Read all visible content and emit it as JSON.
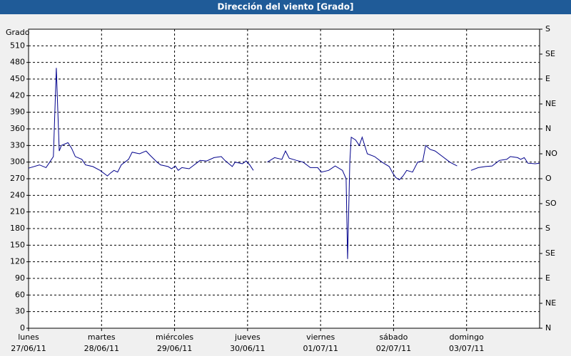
{
  "chart_data": {
    "type": "line",
    "title": "Dirección del viento [Grado]",
    "ylabel": "Grado",
    "x": [
      0,
      0.15,
      0.24,
      0.29,
      0.34,
      0.38,
      0.42,
      0.45,
      0.54,
      0.59,
      0.64,
      0.73,
      0.78,
      0.88,
      0.98,
      1.08,
      1.12,
      1.17,
      1.22,
      1.27,
      1.37,
      1.42,
      1.52,
      1.61,
      1.66,
      1.76,
      1.81,
      1.91,
      1.96,
      2.01,
      2.05,
      2.1,
      2.2,
      2.25,
      2.35,
      2.44,
      2.54,
      2.64,
      2.69,
      2.79,
      2.83,
      2.93,
      2.98,
      3.03,
      3.08,
      3.18,
      3.27,
      3.37,
      3.47,
      3.52,
      3.57,
      3.67,
      3.76,
      3.86,
      3.96,
      4.01,
      4.11,
      4.2,
      4.3,
      4.35,
      4.37,
      4.4,
      4.42,
      4.48,
      4.53,
      4.57,
      4.64,
      4.74,
      4.84,
      4.94,
      4.99,
      5.03,
      5.08,
      5.13,
      5.18,
      5.26,
      5.33,
      5.4,
      5.44,
      5.5,
      5.57,
      5.67,
      5.77,
      5.87,
      5.97,
      6.06,
      6.16,
      6.26,
      6.35,
      6.45,
      6.55,
      6.6,
      6.7,
      6.74,
      6.79,
      6.84,
      6.94,
      7.0
    ],
    "series": [
      {
        "color": "#00008b",
        "values": [
          289,
          295,
          290,
          300,
          310,
          470,
          320,
          330,
          335,
          325,
          310,
          305,
          295,
          292,
          285,
          275,
          280,
          285,
          282,
          295,
          305,
          318,
          315,
          320,
          313,
          300,
          295,
          292,
          288,
          293,
          285,
          290,
          288,
          293,
          303,
          302,
          308,
          310,
          303,
          292,
          300,
          297,
          302,
          295,
          285,
          null,
          300,
          308,
          305,
          320,
          307,
          303,
          300,
          290,
          290,
          282,
          285,
          293,
          285,
          270,
          125,
          300,
          345,
          340,
          330,
          345,
          315,
          310,
          300,
          292,
          280,
          272,
          268,
          275,
          285,
          282,
          300,
          302,
          330,
          323,
          320,
          310,
          300,
          293,
          null,
          285,
          290,
          292,
          293,
          303,
          305,
          310,
          308,
          305,
          308,
          298,
          297,
          298
        ]
      }
    ],
    "xlim": [
      0,
      7
    ],
    "xticks": [
      {
        "value": 0,
        "label": "lunes",
        "date": "27/06/11"
      },
      {
        "value": 1,
        "label": "martes",
        "date": "28/06/11"
      },
      {
        "value": 2,
        "label": "miércoles",
        "date": "29/06/11"
      },
      {
        "value": 3,
        "label": "jueves",
        "date": "30/06/11"
      },
      {
        "value": 4,
        "label": "viernes",
        "date": "01/07/11"
      },
      {
        "value": 5,
        "label": "sábado",
        "date": "02/07/11"
      },
      {
        "value": 6,
        "label": "domingo",
        "date": "03/07/11"
      }
    ],
    "ylim": [
      0,
      540
    ],
    "yticks": [
      0,
      30,
      60,
      90,
      120,
      150,
      180,
      210,
      240,
      270,
      300,
      330,
      360,
      390,
      420,
      450,
      480,
      510
    ],
    "y2lim": [
      0,
      540
    ],
    "y2ticks": [
      {
        "value": 0,
        "label": "N"
      },
      {
        "value": 45,
        "label": "NE"
      },
      {
        "value": 90,
        "label": "E"
      },
      {
        "value": 135,
        "label": "SE"
      },
      {
        "value": 180,
        "label": "S"
      },
      {
        "value": 225,
        "label": "SO"
      },
      {
        "value": 270,
        "label": "O"
      },
      {
        "value": 315,
        "label": "NO"
      },
      {
        "value": 360,
        "label": "N"
      },
      {
        "value": 405,
        "label": "NE"
      },
      {
        "value": 450,
        "label": "E"
      },
      {
        "value": 495,
        "label": "SE"
      },
      {
        "value": 540,
        "label": "S"
      }
    ],
    "grid": true
  }
}
